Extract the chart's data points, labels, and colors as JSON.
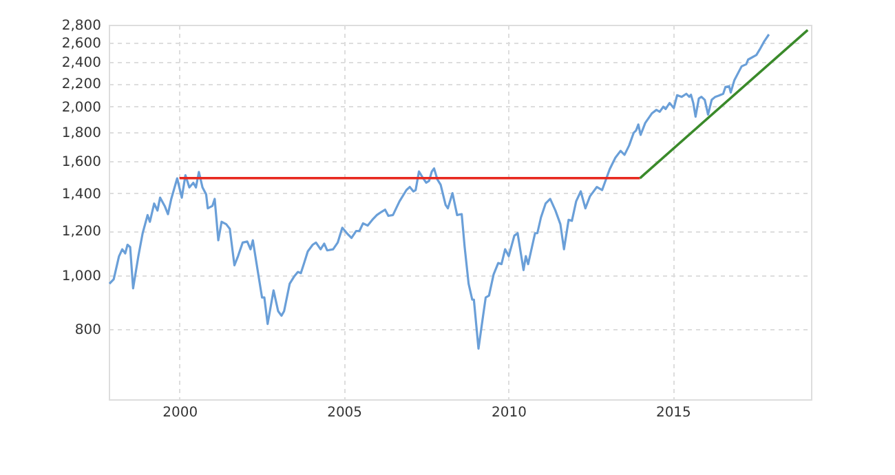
{
  "chart_data": {
    "type": "line",
    "log": "y",
    "grid": true,
    "xlim": [
      1997.85,
      2019.2
    ],
    "ylim": [
      600,
      2800
    ],
    "xticks": [
      2000,
      2005,
      2010,
      2015
    ],
    "yticks": [
      {
        "value": 600,
        "label": null
      },
      800,
      {
        "value": 1000,
        "label": "1,000"
      },
      {
        "value": 1200,
        "label": "1,200"
      },
      {
        "value": 1400,
        "label": "1,400"
      },
      {
        "value": 1600,
        "label": "1,600"
      },
      {
        "value": 1800,
        "label": "1,800"
      },
      {
        "value": 2000,
        "label": "2,000"
      },
      {
        "value": 2200,
        "label": "2,200"
      },
      {
        "value": 2400,
        "label": "2,400"
      },
      {
        "value": 2600,
        "label": "2,600"
      },
      {
        "value": 2800,
        "label": "2,800"
      }
    ],
    "series": [
      {
        "color": "#6a9fd8",
        "x": [
          1997.87,
          1998.0,
          1998.16,
          1998.26,
          1998.35,
          1998.42,
          1998.5,
          1998.59,
          1998.75,
          1998.88,
          1999.03,
          1999.1,
          1999.23,
          1999.33,
          1999.41,
          1999.55,
          1999.65,
          1999.75,
          1999.93,
          2000.07,
          2000.18,
          2000.3,
          2000.42,
          2000.5,
          2000.59,
          2000.7,
          2000.81,
          2000.86,
          2001.0,
          2001.07,
          2001.18,
          2001.28,
          2001.42,
          2001.53,
          2001.67,
          2001.78,
          2001.92,
          2002.06,
          2002.16,
          2002.23,
          2002.34,
          2002.51,
          2002.58,
          2002.68,
          2002.86,
          2003.0,
          2003.1,
          2003.18,
          2003.35,
          2003.48,
          2003.6,
          2003.69,
          2003.79,
          2003.9,
          2004.05,
          2004.15,
          2004.29,
          2004.4,
          2004.49,
          2004.67,
          2004.81,
          2004.95,
          2005.09,
          2005.23,
          2005.37,
          2005.47,
          2005.58,
          2005.72,
          2005.86,
          2006.0,
          2006.14,
          2006.25,
          2006.35,
          2006.49,
          2006.69,
          2006.9,
          2007.0,
          2007.11,
          2007.18,
          2007.28,
          2007.39,
          2007.5,
          2007.59,
          2007.67,
          2007.74,
          2007.84,
          2007.94,
          2008.09,
          2008.16,
          2008.3,
          2008.44,
          2008.58,
          2008.67,
          2008.79,
          2008.9,
          2008.95,
          2009.09,
          2009.23,
          2009.31,
          2009.41,
          2009.55,
          2009.69,
          2009.79,
          2009.9,
          2010.01,
          2010.18,
          2010.28,
          2010.46,
          2010.53,
          2010.6,
          2010.81,
          2010.88,
          2010.99,
          2011.13,
          2011.27,
          2011.43,
          2011.58,
          2011.69,
          2011.83,
          2011.93,
          2012.06,
          2012.2,
          2012.34,
          2012.48,
          2012.69,
          2012.85,
          2013.08,
          2013.25,
          2013.41,
          2013.53,
          2013.67,
          2013.81,
          2013.88,
          2013.95,
          2014.02,
          2014.16,
          2014.36,
          2014.5,
          2014.6,
          2014.71,
          2014.78,
          2014.9,
          2015.03,
          2015.13,
          2015.27,
          2015.41,
          2015.5,
          2015.55,
          2015.62,
          2015.69,
          2015.79,
          2015.87,
          2015.97,
          2016.07,
          2016.18,
          2016.29,
          2016.39,
          2016.53,
          2016.6,
          2016.71,
          2016.76,
          2016.87,
          2017.09,
          2017.23,
          2017.29,
          2017.54,
          2017.64,
          2017.78,
          2017.92
        ],
        "values": [
          965,
          983,
          1080,
          1112,
          1093,
          1133,
          1122,
          947,
          1081,
          1188,
          1280,
          1245,
          1342,
          1304,
          1375,
          1329,
          1285,
          1368,
          1489,
          1375,
          1508,
          1434,
          1462,
          1434,
          1528,
          1434,
          1394,
          1316,
          1329,
          1368,
          1154,
          1245,
          1233,
          1209,
          1041,
          1081,
          1143,
          1148,
          1112,
          1154,
          1051,
          912,
          912,
          818,
          939,
          862,
          846,
          862,
          965,
          993,
          1013,
          1008,
          1051,
          1102,
          1133,
          1143,
          1112,
          1138,
          1107,
          1112,
          1143,
          1215,
          1188,
          1165,
          1199,
          1199,
          1237,
          1226,
          1255,
          1280,
          1297,
          1309,
          1276,
          1280,
          1355,
          1419,
          1437,
          1411,
          1419,
          1531,
          1495,
          1462,
          1474,
          1531,
          1551,
          1482,
          1450,
          1335,
          1316,
          1401,
          1280,
          1285,
          1122,
          965,
          904,
          904,
          739,
          846,
          912,
          919,
          1003,
          1051,
          1046,
          1112,
          1081,
          1176,
          1188,
          1021,
          1081,
          1046,
          1188,
          1188,
          1268,
          1342,
          1368,
          1304,
          1233,
          1112,
          1255,
          1250,
          1355,
          1411,
          1316,
          1383,
          1437,
          1419,
          1546,
          1620,
          1667,
          1640,
          1704,
          1796,
          1812,
          1858,
          1780,
          1870,
          1944,
          1973,
          1958,
          1999,
          1980,
          2030,
          1988,
          2096,
          2082,
          2108,
          2082,
          2100,
          2030,
          1919,
          2068,
          2082,
          2056,
          1936,
          2056,
          2082,
          2092,
          2108,
          2168,
          2175,
          2120,
          2230,
          2360,
          2380,
          2427,
          2473,
          2529,
          2617,
          2691
        ]
      },
      {
        "color": "#e8281e",
        "x": [
          2000,
          2014
        ],
        "values": [
          1490,
          1490
        ]
      },
      {
        "color": "#3a8a2a",
        "x": [
          2014,
          2019.1
        ],
        "values": [
          1490,
          2740
        ]
      }
    ]
  }
}
